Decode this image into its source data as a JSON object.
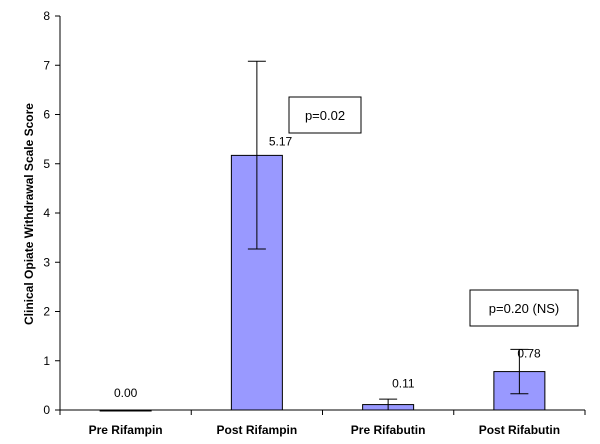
{
  "chart_data": {
    "type": "bar",
    "categories": [
      "Pre Rifampin",
      "Post Rifampin",
      "Pre Rifabutin",
      "Post Rifabutin"
    ],
    "values": [
      0.0,
      5.17,
      0.11,
      0.78
    ],
    "value_labels": [
      "0.00",
      "5.17",
      "0.11",
      "0.78"
    ],
    "error_bars": [
      {
        "low": 0.0,
        "high": 0.0
      },
      {
        "low": 3.27,
        "high": 7.08
      },
      {
        "low": 0.0,
        "high": 0.22
      },
      {
        "low": 0.33,
        "high": 1.23
      }
    ],
    "ylabel": "Clinical Opiate Withdrawal Scale Score",
    "xlabel": "",
    "ylim": [
      0,
      8
    ],
    "yticks": [
      0,
      1,
      2,
      3,
      4,
      5,
      6,
      7,
      8
    ],
    "grid": false,
    "bar_color": "#9999ff",
    "annotations": [
      {
        "text": "p=0.02",
        "group": "rifampin"
      },
      {
        "text": "p=0.20 (NS)",
        "group": "rifabutin"
      }
    ]
  }
}
